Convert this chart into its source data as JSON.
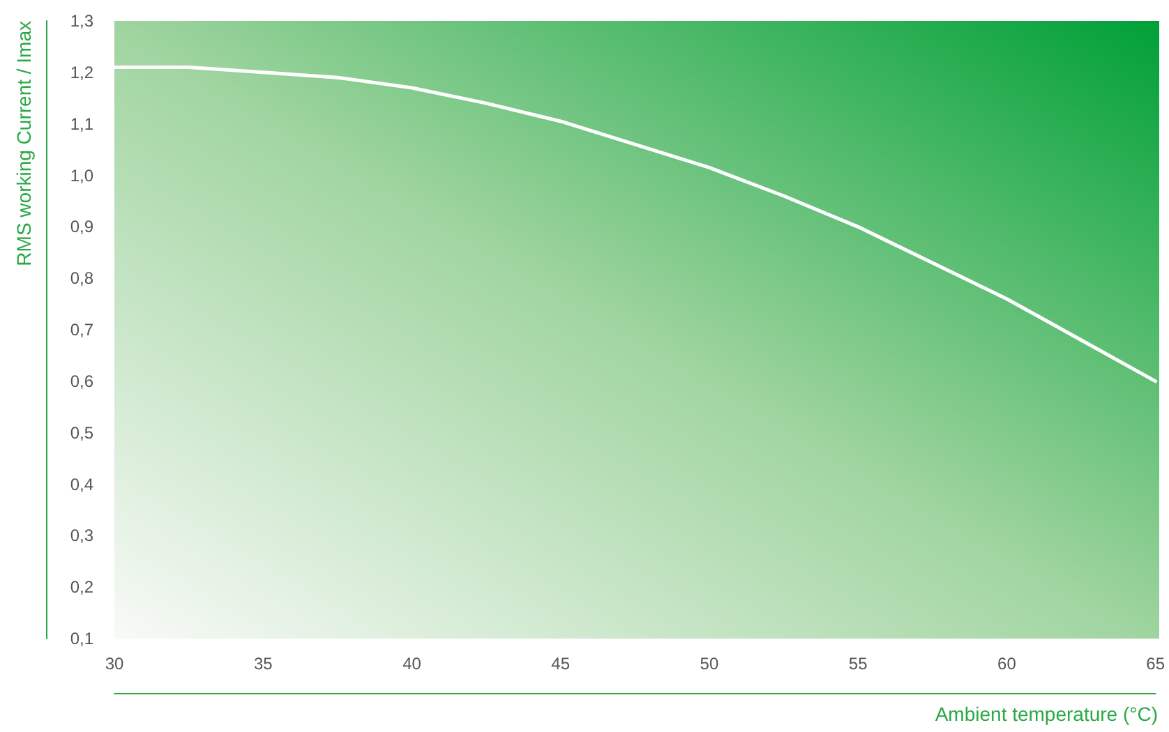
{
  "chart_data": {
    "type": "line",
    "xlabel": "Ambient temperature (°C)",
    "ylabel": "RMS working Current / Imax",
    "x": [
      30,
      32.5,
      35,
      37.5,
      40,
      42.5,
      45,
      47.5,
      50,
      52.5,
      55,
      57.5,
      60,
      62.5,
      65
    ],
    "series": [
      {
        "color": "#ffffff",
        "values": [
          1.21,
          1.21,
          1.2,
          1.19,
          1.17,
          1.14,
          1.105,
          1.06,
          1.015,
          0.96,
          0.9,
          0.83,
          0.76,
          0.68,
          0.6
        ]
      }
    ],
    "xlim": [
      30,
      65
    ],
    "xticks": [
      30,
      35,
      40,
      45,
      50,
      55,
      60,
      65
    ],
    "ylim": [
      0.1,
      1.3
    ],
    "yticks": [
      {
        "value": 0.1,
        "label": "0,1"
      },
      {
        "value": 0.2,
        "label": "0,2"
      },
      {
        "value": 0.3,
        "label": "0,3"
      },
      {
        "value": 0.4,
        "label": "0,4"
      },
      {
        "value": 0.5,
        "label": "0,5"
      },
      {
        "value": 0.6,
        "label": "0,6"
      },
      {
        "value": 0.7,
        "label": "0,7"
      },
      {
        "value": 0.8,
        "label": "0,8"
      },
      {
        "value": 0.9,
        "label": "0,9"
      },
      {
        "value": 1.0,
        "label": "1,0"
      },
      {
        "value": 1.1,
        "label": "1,1"
      },
      {
        "value": 1.2,
        "label": "1,2"
      },
      {
        "value": 1.3,
        "label": "1,3"
      }
    ],
    "grid": false,
    "marker": "none",
    "line_style": "solid"
  }
}
